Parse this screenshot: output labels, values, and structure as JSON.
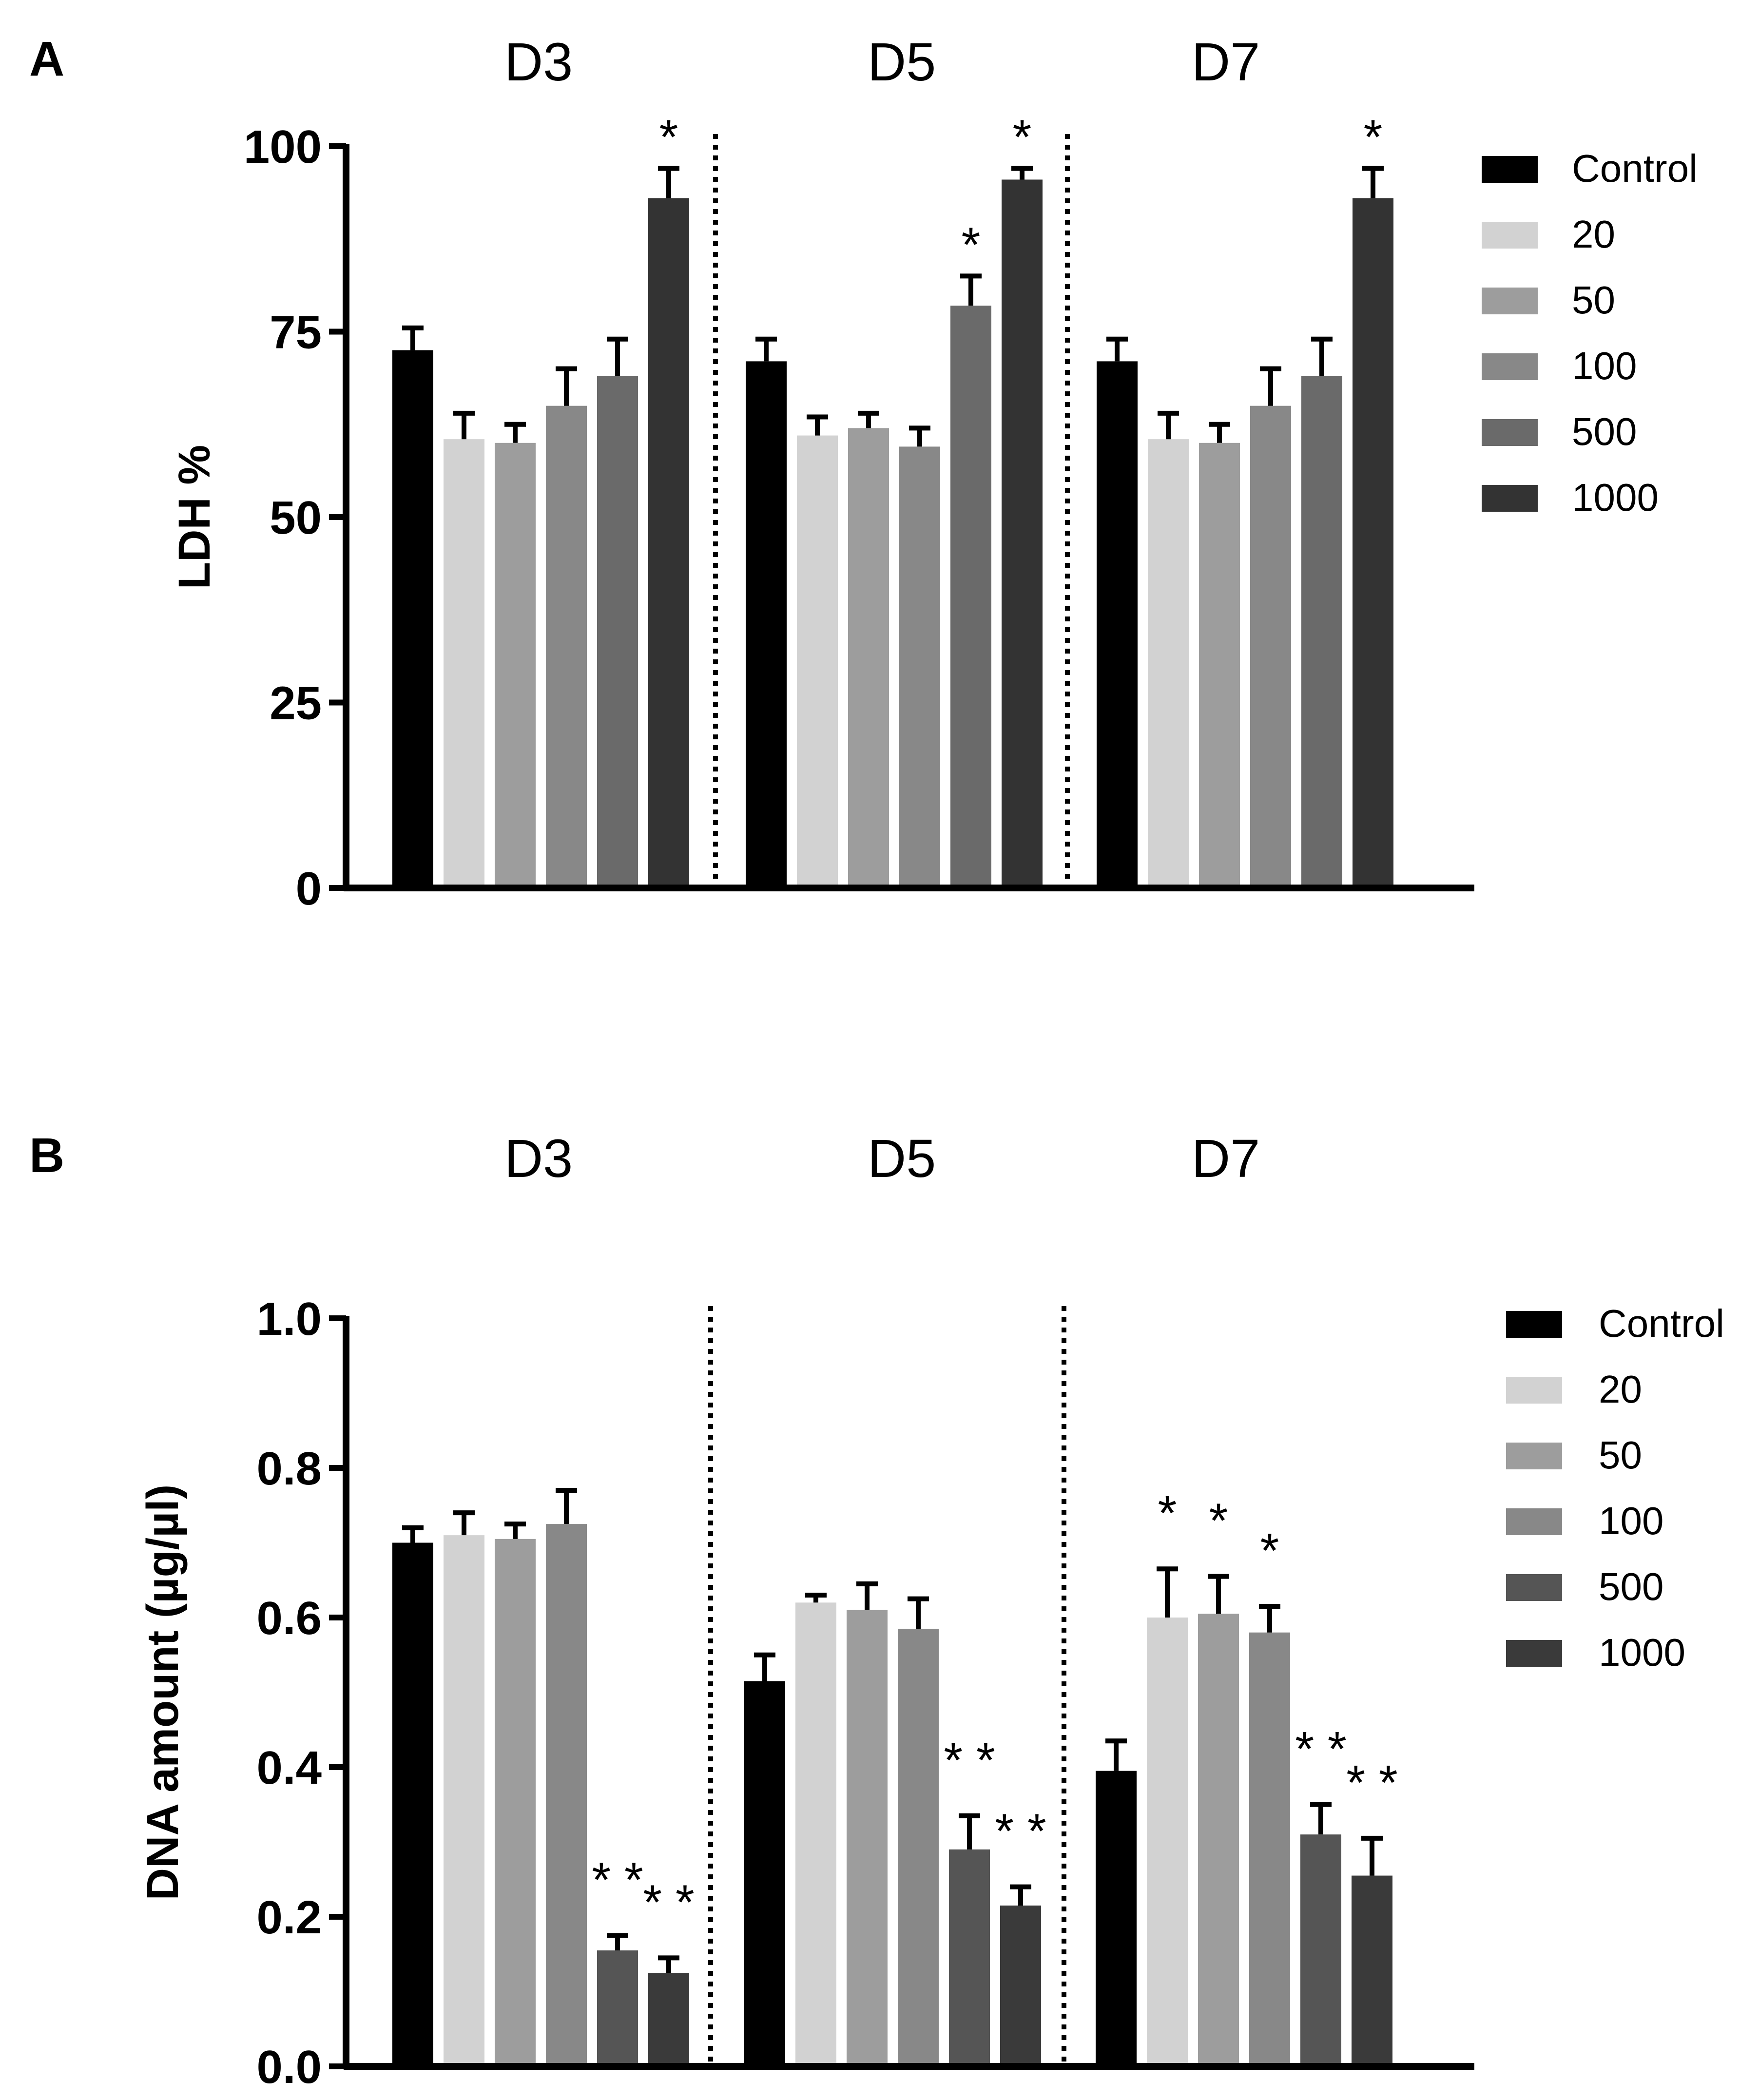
{
  "colors": {
    "Control": "#000000",
    "20": "#d2d2d2",
    "50": "#9d9d9d",
    "100": "#888888",
    "500": "#6a6a6a",
    "1000": "#333333",
    "B500": "#555555",
    "B1000": "#3a3a3a"
  },
  "chart_data": [
    {
      "type": "bar",
      "panel_label": "A",
      "ylabel": "LDH %",
      "ylim": [
        0,
        100
      ],
      "yticks": [
        "0",
        "25",
        "50",
        "75",
        "100"
      ],
      "groups": [
        "D3",
        "D5",
        "D7"
      ],
      "legend": [
        "Control",
        "20",
        "50",
        "100",
        "500",
        "1000"
      ],
      "series": [
        {
          "name": "Control",
          "values": [
            72.5,
            71.0,
            71.0
          ],
          "errors": [
            3.0,
            3.0,
            3.0
          ]
        },
        {
          "name": "20",
          "values": [
            60.5,
            61.0,
            60.5
          ],
          "errors": [
            3.5,
            2.5,
            3.5
          ]
        },
        {
          "name": "50",
          "values": [
            60.0,
            62.0,
            60.0
          ],
          "errors": [
            2.5,
            2.0,
            2.5
          ]
        },
        {
          "name": "100",
          "values": [
            65.0,
            59.5,
            65.0
          ],
          "errors": [
            5.0,
            2.5,
            5.0
          ]
        },
        {
          "name": "500",
          "values": [
            69.0,
            78.5,
            69.0
          ],
          "errors": [
            5.0,
            4.0,
            5.0
          ]
        },
        {
          "name": "1000",
          "values": [
            93.0,
            95.5,
            93.0
          ],
          "errors": [
            4.0,
            1.5,
            4.0
          ]
        }
      ],
      "annotations": [
        {
          "group": "D3",
          "series": "1000",
          "text": "*"
        },
        {
          "group": "D5",
          "series": "500",
          "text": "*"
        },
        {
          "group": "D5",
          "series": "1000",
          "text": "*"
        },
        {
          "group": "D7",
          "series": "1000",
          "text": "*"
        }
      ]
    },
    {
      "type": "bar",
      "panel_label": "B",
      "ylabel": "DNA amount (µg/µl)",
      "ylim": [
        0,
        1.0
      ],
      "yticks": [
        "0.0",
        "0.2",
        "0.4",
        "0.6",
        "0.8",
        "1.0"
      ],
      "groups": [
        "D3",
        "D5",
        "D7"
      ],
      "legend": [
        "Control",
        "20",
        "50",
        "100",
        "500",
        "1000"
      ],
      "series": [
        {
          "name": "Control",
          "values": [
            0.7,
            0.515,
            0.395
          ],
          "errors": [
            0.02,
            0.035,
            0.04
          ]
        },
        {
          "name": "20",
          "values": [
            0.71,
            0.62,
            0.6
          ],
          "errors": [
            0.03,
            0.01,
            0.065
          ]
        },
        {
          "name": "50",
          "values": [
            0.705,
            0.61,
            0.605
          ],
          "errors": [
            0.02,
            0.035,
            0.05
          ]
        },
        {
          "name": "100",
          "values": [
            0.725,
            0.585,
            0.58
          ],
          "errors": [
            0.045,
            0.04,
            0.035
          ]
        },
        {
          "name": "500",
          "values": [
            0.155,
            0.29,
            0.31
          ],
          "errors": [
            0.02,
            0.045,
            0.04
          ]
        },
        {
          "name": "1000",
          "values": [
            0.125,
            0.215,
            0.255
          ],
          "errors": [
            0.02,
            0.025,
            0.05
          ]
        }
      ],
      "annotations": [
        {
          "group": "D3",
          "series": "500",
          "text": "**"
        },
        {
          "group": "D3",
          "series": "1000",
          "text": "**"
        },
        {
          "group": "D5",
          "series": "500",
          "text": "**"
        },
        {
          "group": "D5",
          "series": "1000",
          "text": "**"
        },
        {
          "group": "D7",
          "series": "20",
          "text": "*"
        },
        {
          "group": "D7",
          "series": "50",
          "text": "*"
        },
        {
          "group": "D7",
          "series": "100",
          "text": "*"
        },
        {
          "group": "D7",
          "series": "500",
          "text": "**"
        },
        {
          "group": "D7",
          "series": "1000",
          "text": "**"
        }
      ]
    }
  ]
}
